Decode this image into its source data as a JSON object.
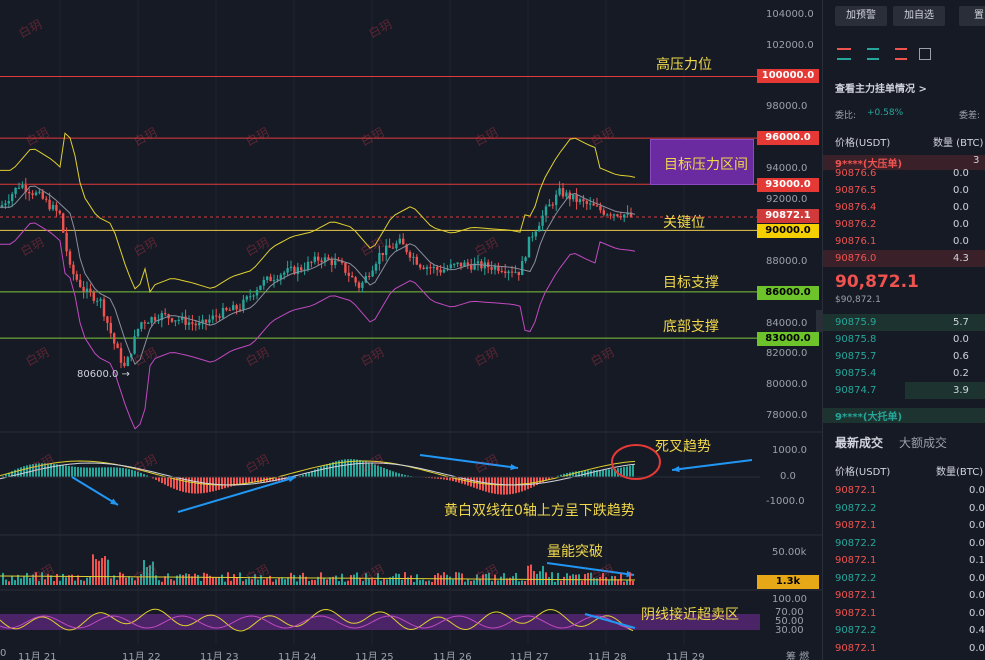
{
  "chart": {
    "price_axis": [
      "104000.0",
      "102000.0",
      "98000.0",
      "94000.0",
      "92000.0",
      "88000.0",
      "84000.0",
      "82000.0",
      "80000.0",
      "78000.0"
    ],
    "macd_axis": [
      "1000.0",
      "0.0",
      "-1000.0"
    ],
    "volume_axis": [
      "50.00k"
    ],
    "rsi_axis": [
      "100.00",
      "70.00",
      "50.00",
      "30.00"
    ],
    "level_tags": {
      "l100000": "100000.0",
      "l96000": "96000.0",
      "l93000": "93000.0",
      "current": "90872.1",
      "l90000": "90000.0",
      "l86000": "86000.0",
      "l83000": "83000.0",
      "volume": "1.3k"
    },
    "low_label": "80600.0 →",
    "dates": [
      "11月 21",
      "11月 22",
      "11月 23",
      "11月 24",
      "11月 25",
      "11月 26",
      "11月 27",
      "11月 28",
      "11月 29"
    ],
    "edge_left": "0",
    "edge_right": "筹   燃",
    "annotations": {
      "high_pressure": "高压力位",
      "target_pressure_zone": "目标压力区间",
      "key_level": "关键位",
      "target_support": "目标支撑",
      "bottom_support": "底部支撑",
      "death_cross": "死叉趋势",
      "macd_note": "黄白双线在0轴上方呈下跌趋势",
      "volume_break": "量能突破",
      "rsi_note": "阴线接近超卖区"
    },
    "watermark": "白玥",
    "colors": {
      "up": "#26a69a",
      "down": "#ef5350",
      "annotation": "#f0d84a",
      "resistance": "#e03a3a",
      "support": "#7ec63a",
      "key": "#e8c84a",
      "zone": "#6a2aa0"
    }
  },
  "side": {
    "buttons": [
      "加预警",
      "加自选",
      "置"
    ],
    "link": "查看主力挂单情况 >",
    "ratio_label": "委比:",
    "ratio_value": "+0.58%",
    "ratio_right": "委差:",
    "header_price": "价格(USDT)",
    "header_qty": "数量 (BTC)",
    "big_ask_label": "9****(大压单)",
    "big_ask_qty": "3",
    "asks": [
      {
        "p": "90876.6",
        "q": "0.0"
      },
      {
        "p": "90876.5",
        "q": "0.0"
      },
      {
        "p": "90876.4",
        "q": "0.0"
      },
      {
        "p": "90876.2",
        "q": "0.0"
      },
      {
        "p": "90876.1",
        "q": "0.0"
      },
      {
        "p": "90876.0",
        "q": "4.3"
      }
    ],
    "last_price": "90,872.1",
    "last_price_sub": "$90,872.1",
    "bids": [
      {
        "p": "90875.9",
        "q": "5.7"
      },
      {
        "p": "90875.8",
        "q": "0.0"
      },
      {
        "p": "90875.7",
        "q": "0.6"
      },
      {
        "p": "90875.4",
        "q": "0.2"
      },
      {
        "p": "90874.7",
        "q": "3.9"
      }
    ],
    "big_bid_label": "9****(大托单)",
    "tabs": [
      "最新成交",
      "大额成交"
    ],
    "trades_header_price": "价格(USDT)",
    "trades_header_qty": "数量(BTC)",
    "trades": [
      {
        "p": "90872.1",
        "q": "0.0",
        "side": "down"
      },
      {
        "p": "90872.2",
        "q": "0.0",
        "side": "up"
      },
      {
        "p": "90872.1",
        "q": "0.0",
        "side": "down"
      },
      {
        "p": "90872.2",
        "q": "0.0",
        "side": "up"
      },
      {
        "p": "90872.1",
        "q": "0.1",
        "side": "down"
      },
      {
        "p": "90872.2",
        "q": "0.0",
        "side": "up"
      },
      {
        "p": "90872.1",
        "q": "0.0",
        "side": "down"
      },
      {
        "p": "90872.1",
        "q": "0.0",
        "side": "down"
      },
      {
        "p": "90872.2",
        "q": "0.4",
        "side": "up"
      },
      {
        "p": "90872.1",
        "q": "0.0",
        "side": "down"
      }
    ]
  }
}
